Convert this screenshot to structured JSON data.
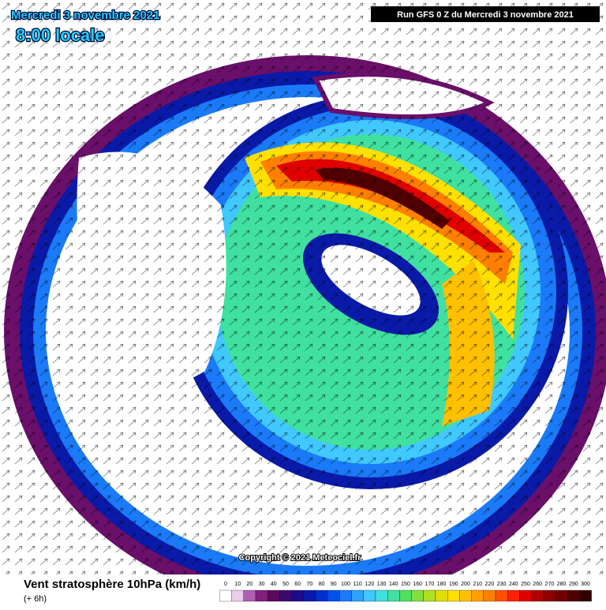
{
  "header": {
    "date": "Mercredi 3 novembre 2021",
    "time": "8:00 locale",
    "run": "Run GFS 0 Z du Mercredi 3 novembre 2021"
  },
  "copyright": "Copyright © 2021 Meteociel.fr",
  "footer": {
    "title": "Vent stratosphère 10hPa (km/h)",
    "lead": "(+ 6h)"
  },
  "legend": {
    "ticks": [
      0,
      10,
      20,
      30,
      40,
      50,
      60,
      70,
      80,
      90,
      100,
      110,
      120,
      130,
      140,
      150,
      160,
      170,
      180,
      190,
      200,
      210,
      220,
      230,
      240,
      250,
      260,
      270,
      280,
      290,
      300
    ],
    "colors": [
      "#ffffff",
      "#e9cde9",
      "#b060b0",
      "#80207f",
      "#5a0a5e",
      "#3b0a6e",
      "#1f0a8a",
      "#0a1aa8",
      "#0030d0",
      "#0050f0",
      "#1a7af8",
      "#30a0ff",
      "#40c8ff",
      "#40e0e0",
      "#40e0a0",
      "#50e060",
      "#80e040",
      "#b0e020",
      "#e0e000",
      "#ffe000",
      "#ffc000",
      "#ffa000",
      "#ff8000",
      "#ff5000",
      "#ff2000",
      "#e00000",
      "#b00000",
      "#900000",
      "#700000",
      "#500000",
      "#300000"
    ]
  }
}
